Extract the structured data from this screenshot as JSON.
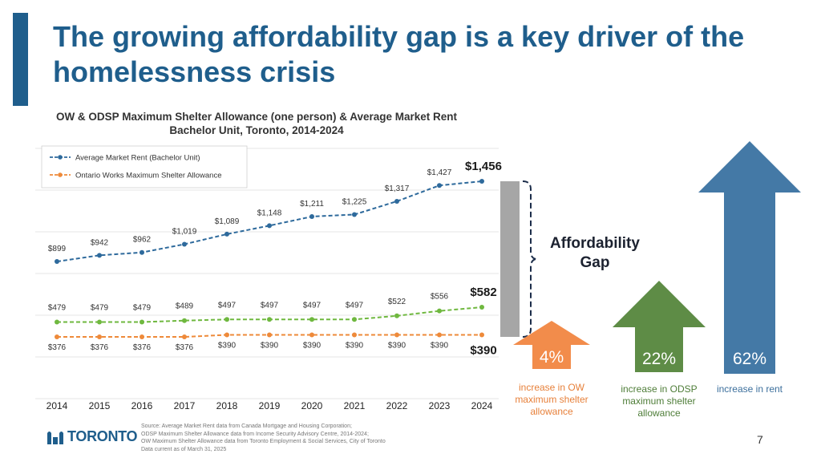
{
  "slide": {
    "title": "The growing affordability gap is a key driver of the homelessness crisis",
    "page_number": "7",
    "logo_text": "TORONTO",
    "source_lines": [
      "Source: Average Market Rent data from Canada Mortgage and Housing Corporation;",
      "ODSP Maximum Shelter Allowance data from Income Security Advisory Centre, 2014-2024;",
      "OW Maximum Shelter Allowance data from Toronto Employment & Social Services, City of Toronto",
      "Data current as of March 31, 2025"
    ]
  },
  "chart_data": {
    "type": "line",
    "title_lines": [
      "OW & ODSP Maximum Shelter Allowance (one person) & Average Market Rent",
      "Bachelor Unit, Toronto, 2014-2024"
    ],
    "x": [
      "2014",
      "2015",
      "2016",
      "2017",
      "2018",
      "2019",
      "2020",
      "2021",
      "2022",
      "2023",
      "2024"
    ],
    "ylim": [
      300,
      1500
    ],
    "grid": true,
    "legend_position": "top-left",
    "series": [
      {
        "name": "Average Market Rent (Bachelor Unit)",
        "color": "#2e6a9c",
        "in_legend": true,
        "values": [
          899,
          942,
          962,
          1019,
          1089,
          1148,
          1211,
          1225,
          1317,
          1427,
          1456
        ],
        "labels": [
          "$899",
          "$942",
          "$962",
          "$1,019",
          "$1,089",
          "$1,148",
          "$1,211",
          "$1,225",
          "$1,317",
          "$1,427",
          "$1,456"
        ]
      },
      {
        "name": "",
        "color": "#6fb83f",
        "in_legend": false,
        "values": [
          479,
          479,
          479,
          489,
          497,
          497,
          497,
          497,
          522,
          556,
          582
        ],
        "labels": [
          "$479",
          "$479",
          "$479",
          "$489",
          "$497",
          "$497",
          "$497",
          "$497",
          "$522",
          "$556",
          "$582"
        ]
      },
      {
        "name": "Ontario Works Maximum Shelter Allowance",
        "color": "#ee8a3a",
        "in_legend": true,
        "values": [
          376,
          376,
          376,
          376,
          390,
          390,
          390,
          390,
          390,
          390,
          390
        ],
        "labels": [
          "$376",
          "$376",
          "$376",
          "$376",
          "$390",
          "$390",
          "$390",
          "$390",
          "$390",
          "$390",
          "$390"
        ]
      }
    ]
  },
  "gap": {
    "label": "Affordability Gap",
    "color": "#a6a6a6"
  },
  "arrows": [
    {
      "name": "ow",
      "percent": "4%",
      "caption": "increase in OW maximum shelter allowance",
      "color": "#f28c4b",
      "caption_color": "#e7803a"
    },
    {
      "name": "odsp",
      "percent": "22%",
      "caption": "increase in ODSP maximum shelter allowance",
      "color": "#5e8c46",
      "caption_color": "#4e7d38"
    },
    {
      "name": "rent",
      "percent": "62%",
      "caption": "increase in rent",
      "color": "#4479a6",
      "caption_color": "#3c6f9c"
    }
  ]
}
